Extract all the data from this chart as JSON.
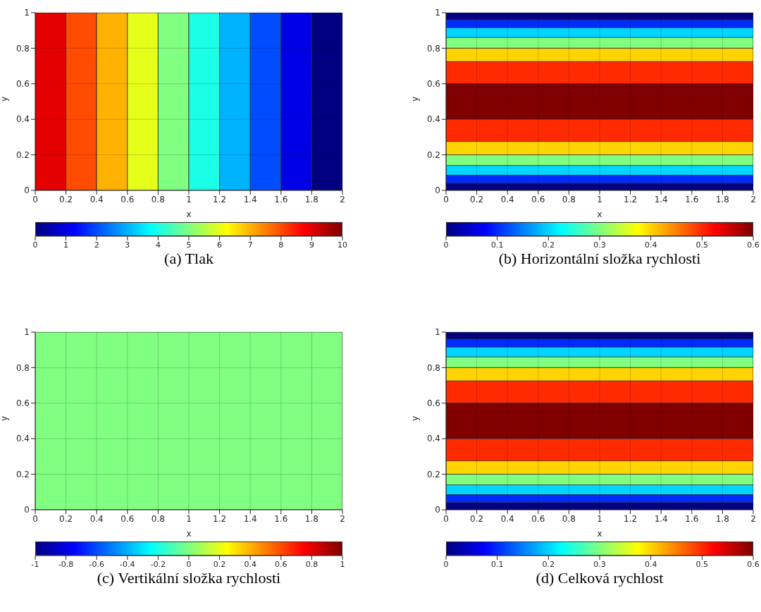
{
  "chart_data": [
    {
      "type": "heatmap",
      "title": "(a) Tlak",
      "xlabel": "x",
      "ylabel": "y",
      "x": [
        0.1,
        0.3,
        0.5,
        0.7,
        0.9,
        1.1,
        1.3,
        1.5,
        1.7,
        1.9
      ],
      "cells": [
        [
          9,
          8,
          7,
          6,
          5,
          4,
          3,
          2,
          1,
          0
        ]
      ],
      "clim": [
        0,
        10
      ],
      "cticks": [
        0,
        1,
        2,
        3,
        4,
        5,
        6,
        7,
        8,
        9,
        10
      ],
      "xlim": [
        0,
        2
      ],
      "xticks": [
        0,
        0.2,
        0.4,
        0.6,
        0.8,
        1,
        1.2,
        1.4,
        1.6,
        1.8,
        2
      ],
      "ylim": [
        0,
        1
      ],
      "yticks": [
        0,
        0.2,
        0.4,
        0.6,
        0.8,
        1
      ],
      "grid": true
    },
    {
      "type": "heatmap",
      "title": "(b) Horizontální složka rychlosti",
      "xlabel": "x",
      "ylabel": "y",
      "y": [
        0.98,
        0.9375,
        0.8875,
        0.83,
        0.7625,
        0.6625,
        0.5,
        0.3375,
        0.2375,
        0.17,
        0.1125,
        0.0625,
        0.02
      ],
      "cells": [
        [
          0
        ],
        [
          0.1
        ],
        [
          0.2
        ],
        [
          0.3
        ],
        [
          0.4
        ],
        [
          0.5
        ],
        [
          0.6
        ],
        [
          0.5
        ],
        [
          0.4
        ],
        [
          0.3
        ],
        [
          0.2
        ],
        [
          0.1
        ],
        [
          0
        ]
      ],
      "clim": [
        0,
        0.6
      ],
      "cticks": [
        0,
        0.1,
        0.2,
        0.3,
        0.4,
        0.5,
        0.6
      ],
      "xlim": [
        0,
        2
      ],
      "xticks": [
        0,
        0.2,
        0.4,
        0.6,
        0.8,
        1,
        1.2,
        1.4,
        1.6,
        1.8,
        2
      ],
      "ylim": [
        0,
        1
      ],
      "yticks": [
        0,
        0.2,
        0.4,
        0.6,
        0.8,
        1
      ],
      "grid": true
    },
    {
      "type": "heatmap",
      "title": "(c) Vertikální složka rychlosti",
      "xlabel": "x",
      "ylabel": "y",
      "cells": [
        [
          0
        ]
      ],
      "clim": [
        -1,
        1
      ],
      "cticks": [
        -1,
        -0.8,
        -0.6,
        -0.4,
        -0.2,
        0,
        0.2,
        0.4,
        0.6,
        0.8,
        1
      ],
      "xlim": [
        0,
        2
      ],
      "xticks": [
        0,
        0.2,
        0.4,
        0.6,
        0.8,
        1,
        1.2,
        1.4,
        1.6,
        1.8,
        2
      ],
      "ylim": [
        0,
        1
      ],
      "yticks": [
        0,
        0.2,
        0.4,
        0.6,
        0.8,
        1
      ],
      "grid": true
    },
    {
      "type": "heatmap",
      "title": "(d) Celková rychlost",
      "xlabel": "x",
      "ylabel": "y",
      "y": [
        0.98,
        0.9375,
        0.8875,
        0.83,
        0.7625,
        0.6625,
        0.5,
        0.3375,
        0.2375,
        0.17,
        0.1125,
        0.0625,
        0.02
      ],
      "cells": [
        [
          0
        ],
        [
          0.1
        ],
        [
          0.2
        ],
        [
          0.3
        ],
        [
          0.4
        ],
        [
          0.5
        ],
        [
          0.6
        ],
        [
          0.5
        ],
        [
          0.4
        ],
        [
          0.3
        ],
        [
          0.2
        ],
        [
          0.1
        ],
        [
          0
        ]
      ],
      "clim": [
        0,
        0.6
      ],
      "cticks": [
        0,
        0.1,
        0.2,
        0.3,
        0.4,
        0.5,
        0.6
      ],
      "xlim": [
        0,
        2
      ],
      "xticks": [
        0,
        0.2,
        0.4,
        0.6,
        0.8,
        1,
        1.2,
        1.4,
        1.6,
        1.8,
        2
      ],
      "ylim": [
        0,
        1
      ],
      "yticks": [
        0,
        0.2,
        0.4,
        0.6,
        0.8,
        1
      ],
      "grid": true
    }
  ]
}
